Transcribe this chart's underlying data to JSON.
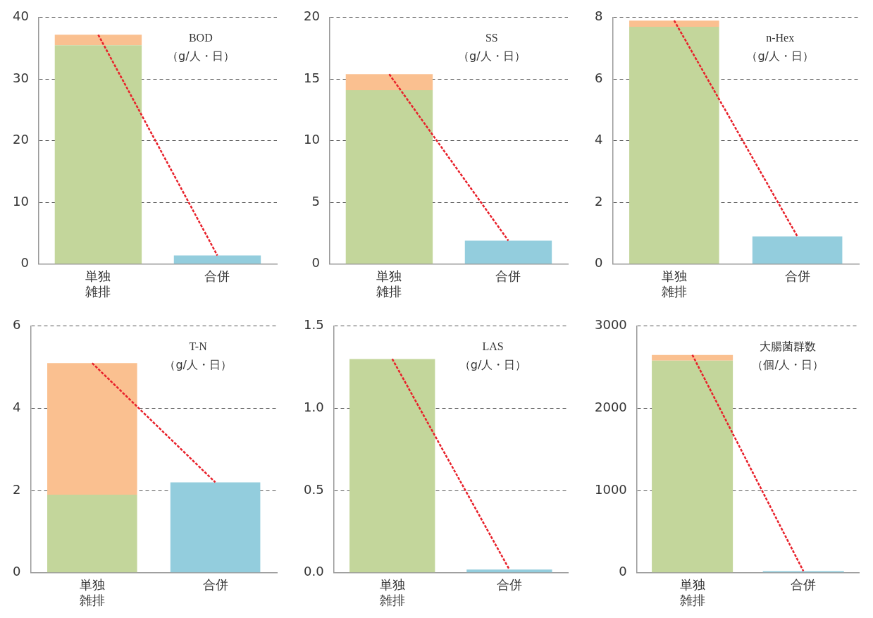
{
  "chart_data": [
    {
      "type": "bar",
      "title": "BOD",
      "subtitle": "（g/人・日）",
      "categories": [
        "単独雑排",
        "合併"
      ],
      "stacked": true,
      "grid": "y",
      "legend": false,
      "marker": "none",
      "line_style": "dashed",
      "ylim": [
        0,
        40
      ],
      "yticks": [
        0,
        10,
        20,
        30,
        40
      ],
      "series": [
        {
          "color": "#c3d69b",
          "values": [
            35.5,
            null
          ]
        },
        {
          "color": "#fac090",
          "values": [
            1.7,
            null
          ]
        },
        {
          "color": "#93cddd",
          "values": [
            null,
            1.4
          ]
        },
        {
          "type": "line",
          "color": "#e8202a",
          "values": [
            37.2,
            1.4
          ]
        }
      ]
    },
    {
      "type": "bar",
      "title": "SS",
      "subtitle": "（g/人・日）",
      "categories": [
        "単独雑排",
        "合併"
      ],
      "stacked": true,
      "grid": "y",
      "legend": false,
      "marker": "none",
      "line_style": "dashed",
      "ylim": [
        0,
        20
      ],
      "yticks": [
        0,
        5,
        10,
        15,
        20
      ],
      "series": [
        {
          "color": "#c3d69b",
          "values": [
            14.1,
            null
          ]
        },
        {
          "color": "#fac090",
          "values": [
            1.3,
            null
          ]
        },
        {
          "color": "#93cddd",
          "values": [
            null,
            1.9
          ]
        },
        {
          "type": "line",
          "color": "#e8202a",
          "values": [
            15.4,
            1.9
          ]
        }
      ]
    },
    {
      "type": "bar",
      "title": "n-Hex",
      "subtitle": "（g/人・日）",
      "categories": [
        "単独雑排",
        "合併"
      ],
      "stacked": true,
      "grid": "y",
      "legend": false,
      "marker": "none",
      "line_style": "dashed",
      "ylim": [
        0,
        8
      ],
      "yticks": [
        0,
        2,
        4,
        6,
        8
      ],
      "series": [
        {
          "color": "#c3d69b",
          "values": [
            7.7,
            null
          ]
        },
        {
          "color": "#fac090",
          "values": [
            0.2,
            null
          ]
        },
        {
          "color": "#93cddd",
          "values": [
            null,
            0.9
          ]
        },
        {
          "type": "line",
          "color": "#e8202a",
          "values": [
            7.9,
            0.9
          ]
        }
      ]
    },
    {
      "type": "bar",
      "title": "T-N",
      "subtitle": "（g/人・日）",
      "categories": [
        "単独雑排",
        "合併"
      ],
      "stacked": true,
      "grid": "y",
      "legend": false,
      "marker": "none",
      "line_style": "dashed",
      "ylim": [
        0,
        6
      ],
      "yticks": [
        0,
        2,
        4,
        6
      ],
      "series": [
        {
          "color": "#c3d69b",
          "values": [
            1.9,
            null
          ]
        },
        {
          "color": "#fac090",
          "values": [
            3.2,
            null
          ]
        },
        {
          "color": "#93cddd",
          "values": [
            null,
            2.2
          ]
        },
        {
          "type": "line",
          "color": "#e8202a",
          "values": [
            5.1,
            2.2
          ]
        }
      ]
    },
    {
      "type": "bar",
      "title": "LAS",
      "subtitle": "（g/人・日）",
      "categories": [
        "単独雑排",
        "合併"
      ],
      "stacked": true,
      "grid": "y",
      "legend": false,
      "marker": "none",
      "line_style": "dashed",
      "ylim": [
        0,
        1.5
      ],
      "yticks": [
        {
          "value": 0,
          "label": "0.0"
        },
        {
          "value": 0.5,
          "label": "0.5"
        },
        {
          "value": 1,
          "label": "1.0"
        },
        {
          "value": 1.5,
          "label": "1.5"
        }
      ],
      "series": [
        {
          "color": "#c3d69b",
          "values": [
            1.3,
            null
          ]
        },
        {
          "color": "#93cddd",
          "values": [
            null,
            0.02
          ]
        },
        {
          "type": "line",
          "color": "#e8202a",
          "values": [
            1.3,
            0.02
          ]
        }
      ]
    },
    {
      "type": "bar",
      "title": "大腸菌群数",
      "subtitle": "（個/人・日）",
      "categories": [
        "単独雑排",
        "合併"
      ],
      "stacked": true,
      "grid": "y",
      "legend": false,
      "marker": "none",
      "line_style": "dashed",
      "ylim": [
        0,
        3000
      ],
      "yticks": [
        0,
        1000,
        2000,
        3000
      ],
      "series": [
        {
          "color": "#c3d69b",
          "values": [
            2580,
            null
          ]
        },
        {
          "color": "#fac090",
          "values": [
            70,
            null
          ]
        },
        {
          "color": "#93cddd",
          "values": [
            null,
            20
          ]
        },
        {
          "type": "line",
          "color": "#e8202a",
          "values": [
            2650,
            20
          ]
        }
      ]
    }
  ]
}
